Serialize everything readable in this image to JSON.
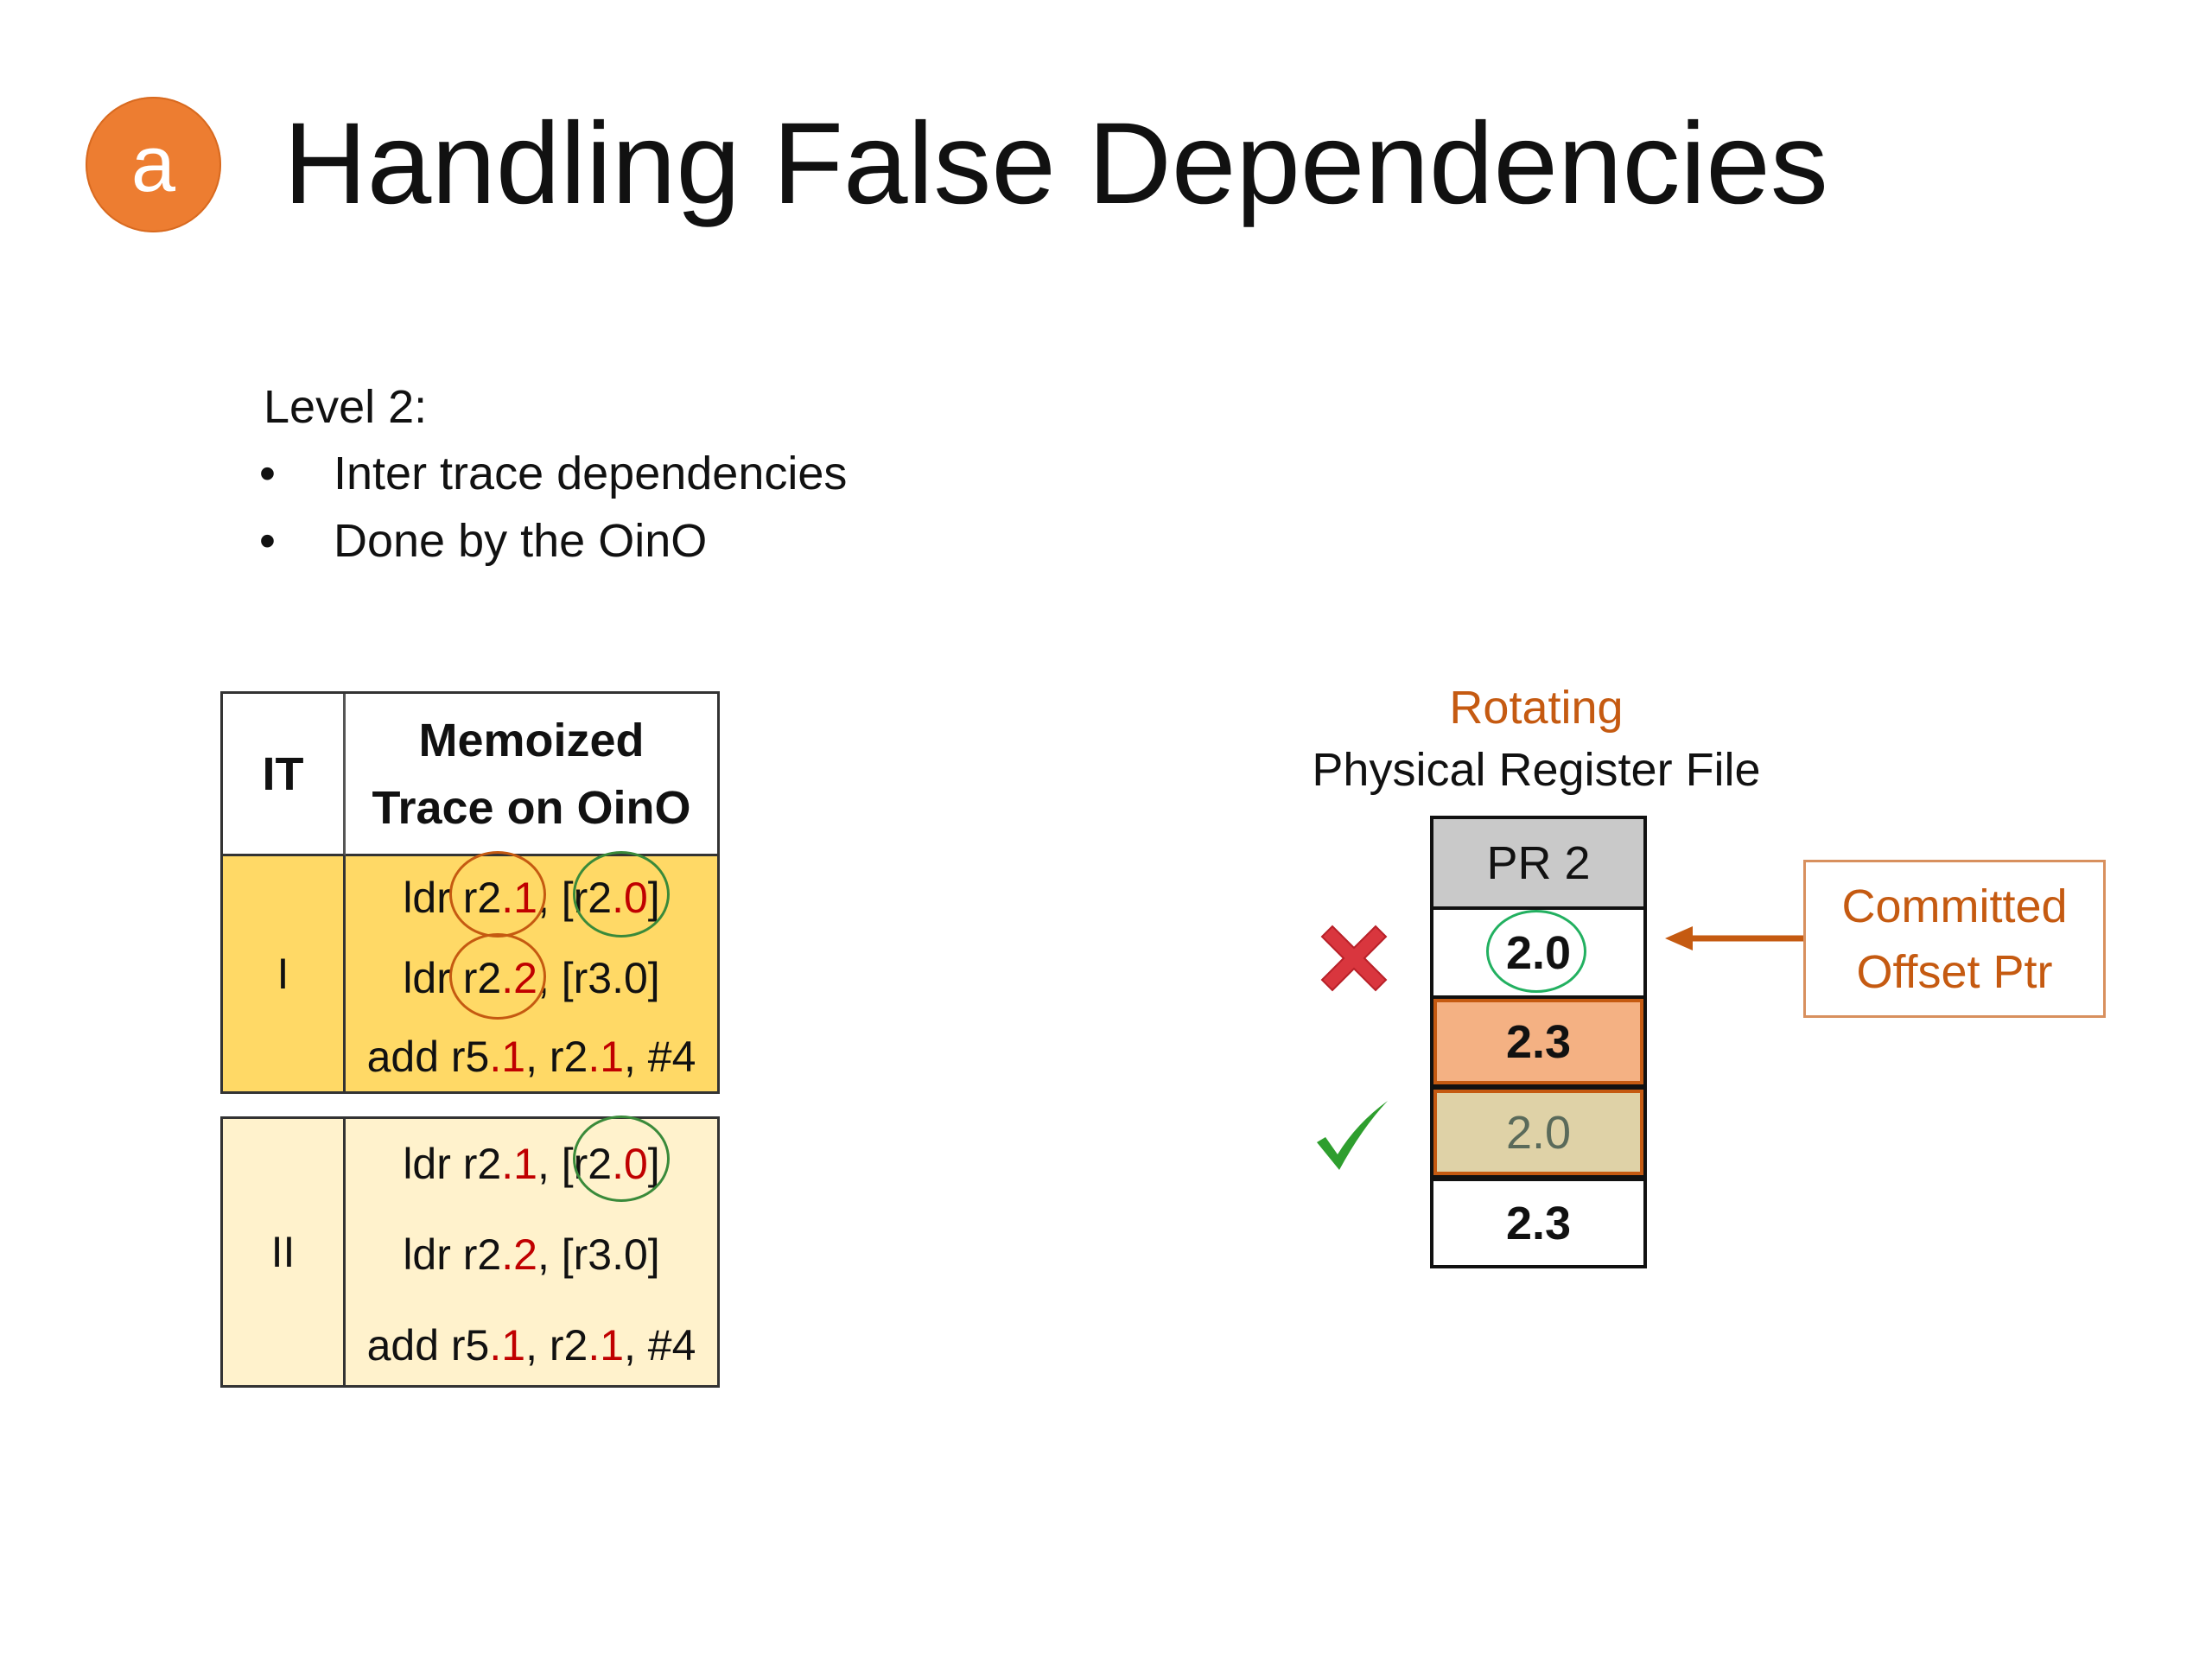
{
  "slide": {
    "badge": "a",
    "title": "Handling False Dependencies",
    "level_label": "Level 2:",
    "bullets": [
      "Inter trace dependencies",
      "Done by the OinO"
    ]
  },
  "trace_table": {
    "headers": {
      "it": "IT",
      "trace": "Memoized Trace on OinO"
    },
    "groups": [
      {
        "it": "I",
        "color": "#FFD966",
        "lines": [
          [
            {
              "t": "ldr r2"
            },
            {
              "t": ".1",
              "red": true
            },
            {
              "t": ", [r2"
            },
            {
              "t": ".0",
              "red": true
            },
            {
              "t": "]"
            }
          ],
          [
            {
              "t": "ldr r2"
            },
            {
              "t": ".2",
              "red": true
            },
            {
              "t": ", [r3.0]"
            }
          ],
          [
            {
              "t": "add r5"
            },
            {
              "t": ".1",
              "red": true
            },
            {
              "t": ", r2"
            },
            {
              "t": ".1",
              "red": true
            },
            {
              "t": ", #4"
            }
          ]
        ]
      },
      {
        "it": "II",
        "color": "#FFF2CC",
        "lines": [
          [
            {
              "t": "ldr r2"
            },
            {
              "t": ".1",
              "red": true
            },
            {
              "t": ", [r2"
            },
            {
              "t": ".0",
              "red": true
            },
            {
              "t": "]"
            }
          ],
          [
            {
              "t": "ldr r2"
            },
            {
              "t": ".2",
              "red": true
            },
            {
              "t": ", [r3.0]"
            }
          ],
          [
            {
              "t": "add r5"
            },
            {
              "t": ".1",
              "red": true
            },
            {
              "t": ", r2"
            },
            {
              "t": ".1",
              "red": true
            },
            {
              "t": ", #4"
            }
          ]
        ]
      }
    ]
  },
  "register_file": {
    "title_accent": "Rotating",
    "title": "Physical Register File",
    "header": "PR 2",
    "cells": [
      {
        "value": "2.0",
        "color": "#FFFFFF",
        "marker": "cross-icon"
      },
      {
        "value": "2.3",
        "color": "#F4B183"
      },
      {
        "value": "2.0",
        "color": "#DFD2A7",
        "marker": "check-icon"
      },
      {
        "value": "2.3",
        "color": "#FFFFFF"
      }
    ],
    "pointer_label": [
      "Committed",
      "Offset Ptr"
    ],
    "accent_color": "#C55A11"
  }
}
